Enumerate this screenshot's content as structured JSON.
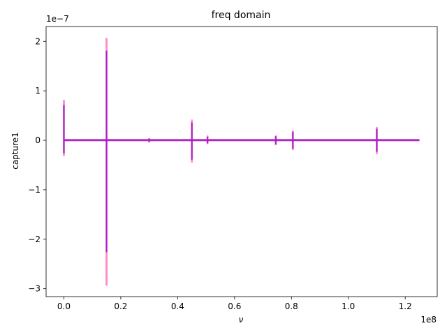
{
  "chart_data": {
    "type": "line",
    "title": "freq domain",
    "xlabel": "ν",
    "ylabel": "capture1",
    "x_offset_label": "1e8",
    "y_offset_label": "1e−7",
    "x_scale": 100000000,
    "y_scale": 1e-07,
    "xlim": [
      -6250000,
      131250000
    ],
    "ylim": [
      -3.16e-07,
      2.3e-07
    ],
    "x_ticks": [
      0,
      20000000,
      40000000,
      60000000,
      80000000,
      100000000,
      120000000
    ],
    "x_tick_labels": [
      "0.0",
      "0.2",
      "0.4",
      "0.6",
      "0.8",
      "1.0",
      "1.2"
    ],
    "y_ticks": [
      -3e-07,
      -2e-07,
      -1e-07,
      0,
      1e-07,
      2e-07
    ],
    "y_tick_labels": [
      "−3",
      "−2",
      "−1",
      "0",
      "1",
      "2"
    ],
    "grid": false,
    "series_colors": [
      "#ff69b4",
      "#9b1fd1"
    ],
    "baseline": {
      "x_start": 0,
      "x_end": 125000000,
      "amplitude": 2e-09
    },
    "series": [
      {
        "peaks": [
          {
            "x": 0,
            "high": 8e-08,
            "low": -3e-08
          },
          {
            "x": 15000000,
            "high": 2.05e-07,
            "low": -2.92e-07
          },
          {
            "x": 30000000,
            "high": 3e-09,
            "low": -3e-09
          },
          {
            "x": 45000000,
            "high": 4e-08,
            "low": -4.3e-08
          },
          {
            "x": 50500000,
            "high": 8e-09,
            "low": -6e-09
          },
          {
            "x": 74500000,
            "high": 8e-09,
            "low": -8e-09
          },
          {
            "x": 80500000,
            "high": 1.8e-08,
            "low": -1.8e-08
          },
          {
            "x": 110000000,
            "high": 2.5e-08,
            "low": -2.6e-08
          }
        ]
      },
      {
        "peaks": [
          {
            "x": 0,
            "high": 7e-08,
            "low": -2.5e-08
          },
          {
            "x": 15000000,
            "high": 1.8e-07,
            "low": -2.25e-07
          },
          {
            "x": 30000000,
            "high": 2e-09,
            "low": -2e-09
          },
          {
            "x": 45000000,
            "high": 3.5e-08,
            "low": -3.8e-08
          },
          {
            "x": 50500000,
            "high": 6e-09,
            "low": -5e-09
          },
          {
            "x": 74500000,
            "high": 7e-09,
            "low": -7e-09
          },
          {
            "x": 80500000,
            "high": 1.6e-08,
            "low": -1.6e-08
          },
          {
            "x": 110000000,
            "high": 2.2e-08,
            "low": -2.2e-08
          }
        ]
      }
    ]
  }
}
